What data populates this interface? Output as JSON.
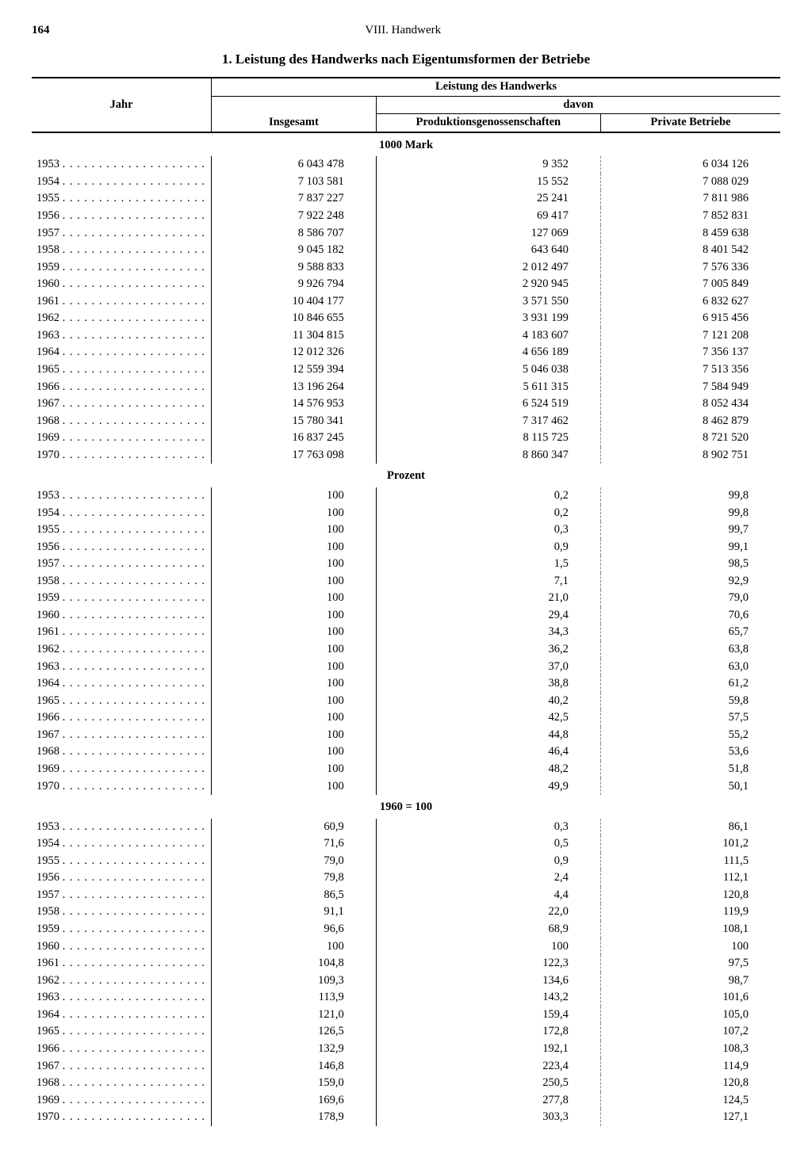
{
  "page_number": "164",
  "chapter": "VIII. Handwerk",
  "title": "1. Leistung des Handwerks nach Eigentumsformen der Betriebe",
  "headers": {
    "year": "Jahr",
    "leistung": "Leistung des Handwerks",
    "insgesamt": "Insgesamt",
    "davon": "davon",
    "prod": "Produktionsgenossenschaften",
    "priv": "Private Betriebe"
  },
  "sections": [
    {
      "heading": "1000 Mark",
      "rows": [
        {
          "y": "1953",
          "i": "6 043 478",
          "p": "9 352",
          "v": "6 034 126"
        },
        {
          "y": "1954",
          "i": "7 103 581",
          "p": "15 552",
          "v": "7 088 029"
        },
        {
          "y": "1955",
          "i": "7 837 227",
          "p": "25 241",
          "v": "7 811 986"
        },
        {
          "y": "1956",
          "i": "7 922 248",
          "p": "69 417",
          "v": "7 852 831"
        },
        {
          "y": "1957",
          "i": "8 586 707",
          "p": "127 069",
          "v": "8 459 638"
        },
        {
          "y": "1958",
          "i": "9 045 182",
          "p": "643 640",
          "v": "8 401 542"
        },
        {
          "y": "1959",
          "i": "9 588 833",
          "p": "2 012 497",
          "v": "7 576 336"
        },
        {
          "y": "1960",
          "i": "9 926 794",
          "p": "2 920 945",
          "v": "7 005 849"
        },
        {
          "y": "1961",
          "i": "10 404 177",
          "p": "3 571 550",
          "v": "6 832 627"
        },
        {
          "y": "1962",
          "i": "10 846 655",
          "p": "3 931 199",
          "v": "6 915 456"
        },
        {
          "y": "1963",
          "i": "11 304 815",
          "p": "4 183 607",
          "v": "7 121 208"
        },
        {
          "y": "1964",
          "i": "12 012 326",
          "p": "4 656 189",
          "v": "7 356 137"
        },
        {
          "y": "1965",
          "i": "12 559 394",
          "p": "5 046 038",
          "v": "7 513 356"
        },
        {
          "y": "1966",
          "i": "13 196 264",
          "p": "5 611 315",
          "v": "7 584 949"
        },
        {
          "y": "1967",
          "i": "14 576 953",
          "p": "6 524 519",
          "v": "8 052 434"
        },
        {
          "y": "1968",
          "i": "15 780 341",
          "p": "7 317 462",
          "v": "8 462 879"
        },
        {
          "y": "1969",
          "i": "16 837 245",
          "p": "8 115 725",
          "v": "8 721 520"
        },
        {
          "y": "1970",
          "i": "17 763 098",
          "p": "8 860 347",
          "v": "8 902 751"
        }
      ]
    },
    {
      "heading": "Prozent",
      "rows": [
        {
          "y": "1953",
          "i": "100",
          "p": "0,2",
          "v": "99,8"
        },
        {
          "y": "1954",
          "i": "100",
          "p": "0,2",
          "v": "99,8"
        },
        {
          "y": "1955",
          "i": "100",
          "p": "0,3",
          "v": "99,7"
        },
        {
          "y": "1956",
          "i": "100",
          "p": "0,9",
          "v": "99,1"
        },
        {
          "y": "1957",
          "i": "100",
          "p": "1,5",
          "v": "98,5"
        },
        {
          "y": "1958",
          "i": "100",
          "p": "7,1",
          "v": "92,9"
        },
        {
          "y": "1959",
          "i": "100",
          "p": "21,0",
          "v": "79,0"
        },
        {
          "y": "1960",
          "i": "100",
          "p": "29,4",
          "v": "70,6"
        },
        {
          "y": "1961",
          "i": "100",
          "p": "34,3",
          "v": "65,7"
        },
        {
          "y": "1962",
          "i": "100",
          "p": "36,2",
          "v": "63,8"
        },
        {
          "y": "1963",
          "i": "100",
          "p": "37,0",
          "v": "63,0"
        },
        {
          "y": "1964",
          "i": "100",
          "p": "38,8",
          "v": "61,2"
        },
        {
          "y": "1965",
          "i": "100",
          "p": "40,2",
          "v": "59,8"
        },
        {
          "y": "1966",
          "i": "100",
          "p": "42,5",
          "v": "57,5"
        },
        {
          "y": "1967",
          "i": "100",
          "p": "44,8",
          "v": "55,2"
        },
        {
          "y": "1968",
          "i": "100",
          "p": "46,4",
          "v": "53,6"
        },
        {
          "y": "1969",
          "i": "100",
          "p": "48,2",
          "v": "51,8"
        },
        {
          "y": "1970",
          "i": "100",
          "p": "49,9",
          "v": "50,1"
        }
      ]
    },
    {
      "heading": "1960 = 100",
      "rows": [
        {
          "y": "1953",
          "i": "60,9",
          "p": "0,3",
          "v": "86,1"
        },
        {
          "y": "1954",
          "i": "71,6",
          "p": "0,5",
          "v": "101,2"
        },
        {
          "y": "1955",
          "i": "79,0",
          "p": "0,9",
          "v": "111,5"
        },
        {
          "y": "1956",
          "i": "79,8",
          "p": "2,4",
          "v": "112,1"
        },
        {
          "y": "1957",
          "i": "86,5",
          "p": "4,4",
          "v": "120,8"
        },
        {
          "y": "1958",
          "i": "91,1",
          "p": "22,0",
          "v": "119,9"
        },
        {
          "y": "1959",
          "i": "96,6",
          "p": "68,9",
          "v": "108,1"
        },
        {
          "y": "1960",
          "i": "100",
          "p": "100",
          "v": "100"
        },
        {
          "y": "1961",
          "i": "104,8",
          "p": "122,3",
          "v": "97,5"
        },
        {
          "y": "1962",
          "i": "109,3",
          "p": "134,6",
          "v": "98,7"
        },
        {
          "y": "1963",
          "i": "113,9",
          "p": "143,2",
          "v": "101,6"
        },
        {
          "y": "1964",
          "i": "121,0",
          "p": "159,4",
          "v": "105,0"
        },
        {
          "y": "1965",
          "i": "126,5",
          "p": "172,8",
          "v": "107,2"
        },
        {
          "y": "1966",
          "i": "132,9",
          "p": "192,1",
          "v": "108,3"
        },
        {
          "y": "1967",
          "i": "146,8",
          "p": "223,4",
          "v": "114,9"
        },
        {
          "y": "1968",
          "i": "159,0",
          "p": "250,5",
          "v": "120,8"
        },
        {
          "y": "1969",
          "i": "169,6",
          "p": "277,8",
          "v": "124,5"
        },
        {
          "y": "1970",
          "i": "178,9",
          "p": "303,3",
          "v": "127,1"
        }
      ]
    }
  ]
}
